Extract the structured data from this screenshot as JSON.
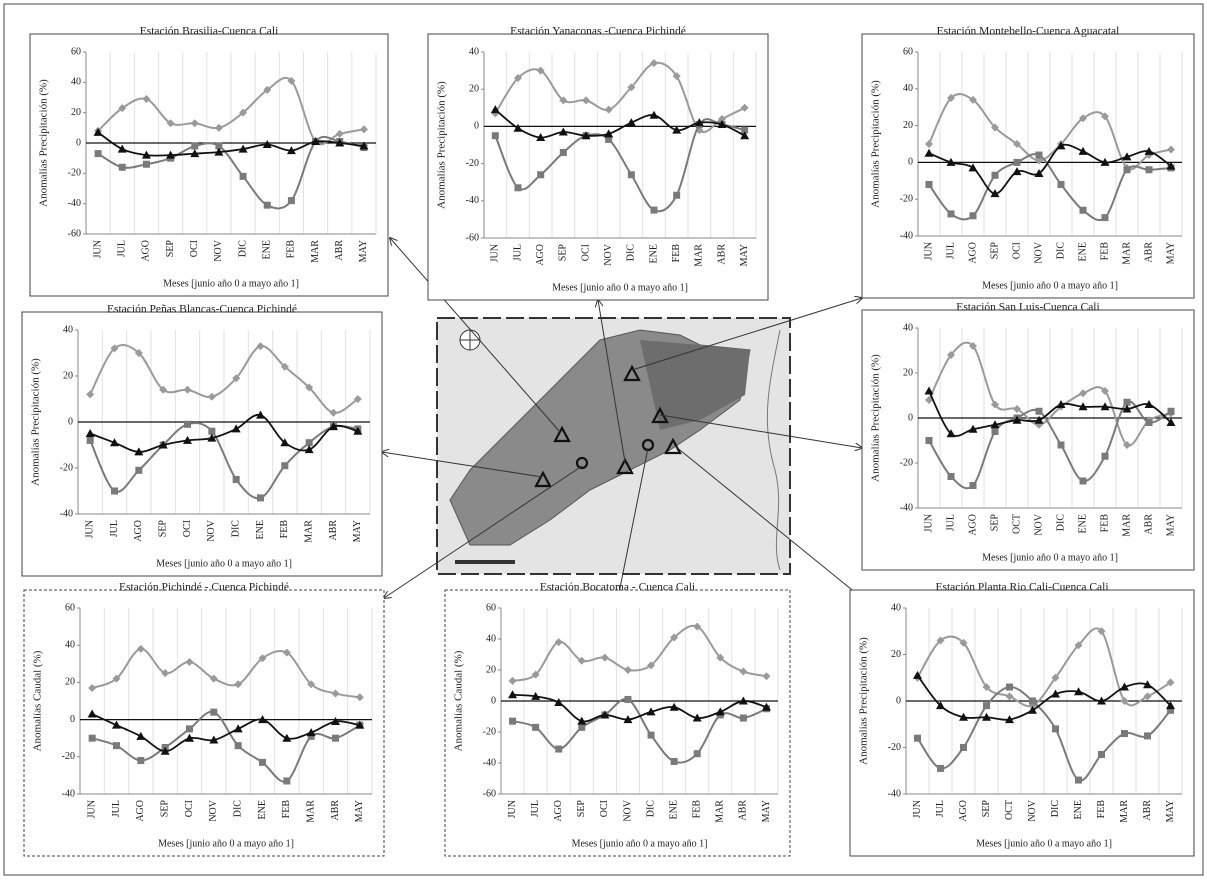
{
  "chart_data": [
    {
      "type": "line",
      "title": "Estación Brasilia-Cuenca Cali",
      "ylabel": "Anomalías Precipitación (%)",
      "xlabel": "Meses [junio año 0 a mayo año 1]",
      "categories": [
        "JUN",
        "JUL",
        "AGO",
        "SEP",
        "OCI",
        "NOV",
        "DIC",
        "ENE",
        "FEB",
        "MAR",
        "ABR",
        "MAY"
      ],
      "ylim": [
        -60,
        60
      ],
      "yticks": [
        -60,
        -40,
        -20,
        0,
        20,
        40,
        60
      ],
      "grid": true,
      "series": [
        {
          "color": "#9a9a9a",
          "marker": "diamond",
          "values": [
            8,
            23,
            29,
            13,
            13,
            10,
            20,
            35,
            41,
            1,
            6,
            9
          ]
        },
        {
          "color": "#7a7a7a",
          "marker": "square",
          "values": [
            -7,
            -16,
            -14,
            -10,
            -2,
            -2,
            -22,
            -41,
            -38,
            1,
            1,
            -3
          ]
        },
        {
          "color": "#111111",
          "marker": "triangle",
          "values": [
            7,
            -4,
            -8,
            -8,
            -7,
            -6,
            -4,
            -1,
            -5,
            1,
            0,
            -2
          ]
        }
      ]
    },
    {
      "type": "line",
      "title": "Estación Yanaconas -Cuenca Pichindé",
      "ylabel": "Anomalías Precipitación (%)",
      "xlabel": "Meses [junio año 0 a mayo año 1]",
      "categories": [
        "JUN",
        "JUL",
        "AGO",
        "SEP",
        "OCI",
        "NOV",
        "DIC",
        "ENE",
        "FEB",
        "MAR",
        "ABR",
        "MAY"
      ],
      "ylim": [
        -60,
        40
      ],
      "yticks": [
        -60,
        -40,
        -20,
        0,
        20,
        40
      ],
      "grid": true,
      "series": [
        {
          "color": "#9a9a9a",
          "marker": "diamond",
          "values": [
            7,
            26,
            30,
            14,
            14,
            9,
            21,
            34,
            27,
            -2,
            4,
            10
          ]
        },
        {
          "color": "#7a7a7a",
          "marker": "square",
          "values": [
            -5,
            -33,
            -26,
            -14,
            -5,
            -7,
            -26,
            -45,
            -37,
            1,
            1,
            -2
          ]
        },
        {
          "color": "#111111",
          "marker": "triangle",
          "values": [
            9,
            -1,
            -6,
            -3,
            -5,
            -4,
            2,
            6,
            -2,
            2,
            1,
            -5
          ]
        }
      ]
    },
    {
      "type": "line",
      "title": "Estación Montebello-Cuenca Aguacatal",
      "ylabel": "Anomalías Precipitación (%)",
      "xlabel": "Meses [junio año 0 a mayo año 1]",
      "categories": [
        "JUN",
        "JUL",
        "AGO",
        "SEP",
        "OCI",
        "NOV",
        "DIC",
        "ENE",
        "FEB",
        "MAR",
        "ABR",
        "MAY"
      ],
      "ylim": [
        -40,
        60
      ],
      "yticks": [
        -40,
        -20,
        0,
        20,
        40,
        60
      ],
      "grid": true,
      "series": [
        {
          "color": "#9a9a9a",
          "marker": "diamond",
          "values": [
            10,
            35,
            34,
            19,
            10,
            1,
            10,
            24,
            25,
            -3,
            4,
            7
          ]
        },
        {
          "color": "#7a7a7a",
          "marker": "square",
          "values": [
            -12,
            -28,
            -29,
            -7,
            0,
            4,
            -12,
            -26,
            -30,
            -4,
            -4,
            -3
          ]
        },
        {
          "color": "#111111",
          "marker": "triangle",
          "values": [
            5,
            0,
            -3,
            -17,
            -5,
            -6,
            9,
            6,
            0,
            3,
            6,
            -2
          ]
        }
      ]
    },
    {
      "type": "line",
      "title": "Estación Peñas Blancas-Cuenca Pichindé",
      "ylabel": "Anomalías Precipitación (%)",
      "xlabel": "Meses [junio año 0 a mayo año 1]",
      "categories": [
        "JUN",
        "JUL",
        "AGO",
        "SEP",
        "OCI",
        "NOV",
        "DIC",
        "ENE",
        "FEB",
        "MAR",
        "ABR",
        "MAY"
      ],
      "ylim": [
        -40,
        40
      ],
      "yticks": [
        -40,
        -20,
        0,
        20,
        40
      ],
      "grid": true,
      "series": [
        {
          "color": "#9a9a9a",
          "marker": "diamond",
          "values": [
            12,
            32,
            30,
            14,
            14,
            11,
            19,
            33,
            24,
            15,
            4,
            10
          ]
        },
        {
          "color": "#7a7a7a",
          "marker": "square",
          "values": [
            -8,
            -30,
            -21,
            -10,
            -1,
            -4,
            -25,
            -33,
            -19,
            -9,
            -2,
            -3
          ]
        },
        {
          "color": "#111111",
          "marker": "triangle",
          "values": [
            -5,
            -9,
            -13,
            -10,
            -8,
            -7,
            -3,
            3,
            -9,
            -12,
            -2,
            -4
          ]
        }
      ]
    },
    {
      "type": "line",
      "title": "Estación San Luis-Cuenca Cali",
      "ylabel": "Anomalías Precipitación (%)",
      "xlabel": "Meses [junio año 0 a mayo año 1]",
      "categories": [
        "JUN",
        "JUL",
        "AGO",
        "SEP",
        "OCT",
        "NOV",
        "DIC",
        "ENE",
        "FEB",
        "MAR",
        "ABR",
        "MAY"
      ],
      "ylim": [
        -40,
        40
      ],
      "yticks": [
        -40,
        -20,
        0,
        20,
        40
      ],
      "grid": true,
      "series": [
        {
          "color": "#9a9a9a",
          "marker": "diamond",
          "values": [
            8,
            28,
            32,
            6,
            4,
            -3,
            5,
            11,
            12,
            -12,
            -1,
            2
          ]
        },
        {
          "color": "#7a7a7a",
          "marker": "square",
          "values": [
            -10,
            -26,
            -30,
            -6,
            0,
            3,
            -12,
            -28,
            -17,
            7,
            -2,
            3
          ]
        },
        {
          "color": "#111111",
          "marker": "triangle",
          "values": [
            12,
            -7,
            -5,
            -3,
            -1,
            -1,
            6,
            5,
            5,
            4,
            6,
            -2
          ]
        }
      ]
    },
    {
      "type": "line",
      "title": "Estación Pichindé - Cuenca Pichindé",
      "ylabel": "Anomalías Caudal (%)",
      "xlabel": "Meses [junio año 0 a mayo año 1]",
      "categories": [
        "JUN",
        "JUL",
        "AGO",
        "SEP",
        "OCI",
        "NOV",
        "DIC",
        "ENE",
        "FEB",
        "MAR",
        "ABR",
        "MAY"
      ],
      "ylim": [
        -40,
        60
      ],
      "yticks": [
        -40,
        -20,
        0,
        20,
        40,
        60
      ],
      "grid": true,
      "series": [
        {
          "color": "#9a9a9a",
          "marker": "diamond",
          "values": [
            17,
            22,
            38,
            25,
            31,
            22,
            19,
            33,
            36,
            19,
            14,
            12
          ]
        },
        {
          "color": "#7a7a7a",
          "marker": "square",
          "values": [
            -10,
            -14,
            -22,
            -15,
            -5,
            4,
            -14,
            -23,
            -33,
            -9,
            -10,
            -3
          ]
        },
        {
          "color": "#111111",
          "marker": "triangle",
          "values": [
            3,
            -3,
            -9,
            -17,
            -10,
            -11,
            -5,
            0,
            -10,
            -7,
            -1,
            -3
          ]
        }
      ]
    },
    {
      "type": "line",
      "title": "Estación Bocatoma  -   Cuenca Cali",
      "ylabel": "Anomalías Caudal (%)",
      "xlabel": "Meses [junio año 0 a mayo año 1]",
      "categories": [
        "JUN",
        "JUL",
        "AGO",
        "SEP",
        "OCI",
        "NOV",
        "DIC",
        "ENE",
        "FEB",
        "MAR",
        "ABR",
        "MAY"
      ],
      "ylim": [
        -60,
        60
      ],
      "yticks": [
        -60,
        -40,
        -20,
        0,
        20,
        40,
        60
      ],
      "grid": true,
      "series": [
        {
          "color": "#9a9a9a",
          "marker": "diamond",
          "values": [
            13,
            17,
            38,
            26,
            28,
            20,
            23,
            41,
            48,
            28,
            19,
            16
          ]
        },
        {
          "color": "#7a7a7a",
          "marker": "square",
          "values": [
            -13,
            -17,
            -31,
            -17,
            -9,
            1,
            -22,
            -39,
            -34,
            -9,
            -11,
            -5
          ]
        },
        {
          "color": "#111111",
          "marker": "triangle",
          "values": [
            4,
            3,
            -1,
            -13,
            -9,
            -12,
            -7,
            -4,
            -11,
            -7,
            0,
            -4
          ]
        }
      ]
    },
    {
      "type": "line",
      "title": "Estación Planta Rio Cali-Cuenca Cali",
      "ylabel": "Anomalías Precipitación (%)",
      "xlabel": "Meses [junio año 0 a mayo año 1]",
      "categories": [
        "JUN",
        "JUL",
        "AGO",
        "SEP",
        "OCT",
        "NOV",
        "DIC",
        "ENE",
        "FEB",
        "MAR",
        "ABR",
        "MAY"
      ],
      "ylim": [
        -40,
        40
      ],
      "yticks": [
        -40,
        -20,
        0,
        20,
        40
      ],
      "grid": true,
      "series": [
        {
          "color": "#9a9a9a",
          "marker": "diamond",
          "values": [
            10,
            26,
            25,
            6,
            2,
            -2,
            10,
            24,
            30,
            0,
            2,
            8
          ]
        },
        {
          "color": "#7a7a7a",
          "marker": "square",
          "values": [
            -16,
            -29,
            -20,
            -2,
            6,
            0,
            -12,
            -34,
            -23,
            -14,
            -15,
            -4
          ]
        },
        {
          "color": "#111111",
          "marker": "triangle",
          "values": [
            11,
            -2,
            -7,
            -7,
            -8,
            -4,
            3,
            4,
            0,
            6,
            7,
            -2
          ]
        }
      ]
    }
  ]
}
